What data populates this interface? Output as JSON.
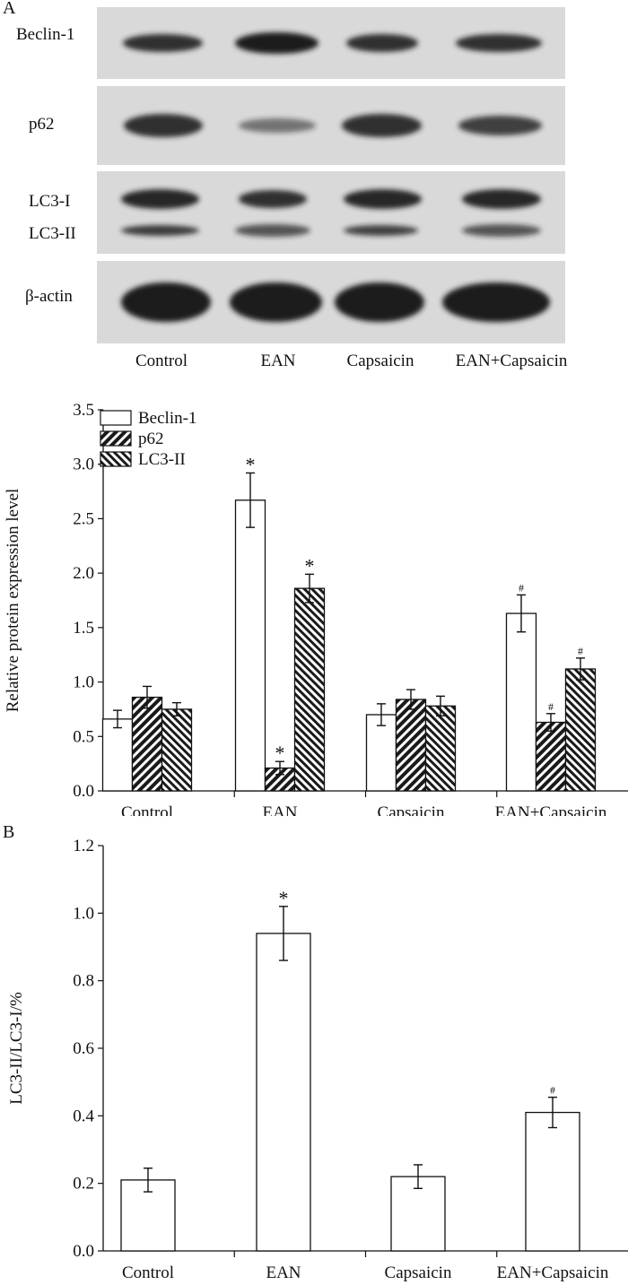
{
  "panel_a_label": "A",
  "panel_b_label": "B",
  "blot": {
    "rows": [
      {
        "label": "Beclin-1"
      },
      {
        "label": "p62"
      },
      {
        "label": "LC3-I",
        "label2": "LC3-II"
      },
      {
        "label": "β-actin"
      }
    ],
    "lanes": [
      "Control",
      "EAN",
      "Capsaicin",
      "EAN+Capsaicin"
    ]
  },
  "colors": {
    "ink": "#111111",
    "band": "#1c1c1c",
    "membrane": "#d9d9d9"
  },
  "chart_data": [
    {
      "type": "bar",
      "title": "",
      "xlabel": "",
      "ylabel": "Relative protein expression level",
      "ylim": [
        0,
        3.5
      ],
      "yticks": [
        "0.0",
        "0.5",
        "1.0",
        "1.5",
        "2.0",
        "2.5",
        "3.0",
        "3.5"
      ],
      "categories": [
        "Control",
        "EAN",
        "Capsaicin",
        "EAN+Capsaicin"
      ],
      "legend_position": "top-left",
      "series": [
        {
          "name": "Beclin-1",
          "pattern": "open",
          "values": [
            0.66,
            2.67,
            0.7,
            1.63
          ],
          "errors": [
            0.08,
            0.25,
            0.1,
            0.17
          ],
          "marks": [
            "",
            "*",
            "",
            "#"
          ]
        },
        {
          "name": "p62",
          "pattern": "forward-hatch",
          "values": [
            0.86,
            0.21,
            0.84,
            0.63
          ],
          "errors": [
            0.1,
            0.06,
            0.09,
            0.08
          ],
          "marks": [
            "",
            "*",
            "",
            "#"
          ]
        },
        {
          "name": "LC3-II",
          "pattern": "back-hatch",
          "values": [
            0.75,
            1.86,
            0.78,
            1.12
          ],
          "errors": [
            0.06,
            0.13,
            0.09,
            0.1
          ],
          "marks": [
            "",
            "*",
            "",
            "#"
          ]
        }
      ]
    },
    {
      "type": "bar",
      "title": "",
      "xlabel": "",
      "ylabel": "LC3-II/LC3-I/%",
      "ylim": [
        0,
        1.2
      ],
      "yticks": [
        "0.0",
        "0.2",
        "0.4",
        "0.6",
        "0.8",
        "1.0",
        "1.2"
      ],
      "categories": [
        "Control",
        "EAN",
        "Capsaicin",
        "EAN+Capsaicin"
      ],
      "series": [
        {
          "name": "LC3-II/LC3-I",
          "pattern": "open",
          "values": [
            0.21,
            0.94,
            0.22,
            0.41
          ],
          "errors": [
            0.035,
            0.08,
            0.035,
            0.045
          ],
          "marks": [
            "",
            "*",
            "",
            "#"
          ]
        }
      ]
    }
  ]
}
